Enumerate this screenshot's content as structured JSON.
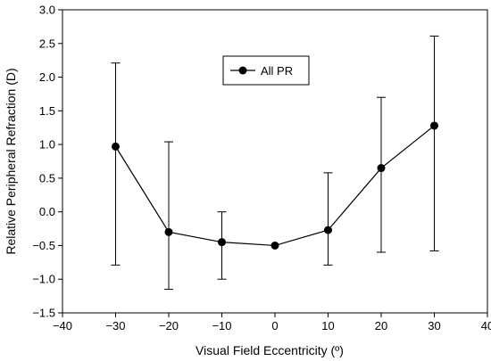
{
  "chart_data": {
    "type": "line",
    "xlabel": "Visual Field Eccentricity (º)",
    "ylabel": "Relative Peripheral Refraction (D)",
    "xlim": [
      -40,
      40
    ],
    "ylim": [
      -1.5,
      3.0
    ],
    "x_ticks": [
      -40,
      -30,
      -20,
      -10,
      0,
      10,
      20,
      30,
      40
    ],
    "x_tick_labels": [
      "−40",
      "−30",
      "−20",
      "−10",
      "0",
      "10",
      "20",
      "30",
      "40"
    ],
    "y_ticks": [
      3.0,
      2.5,
      2.0,
      1.5,
      1.0,
      0.5,
      0.0,
      -0.5,
      -1.0,
      -1.5
    ],
    "y_tick_labels": [
      "3.0",
      "2.5",
      "2.0",
      "1.5",
      "1.0",
      "0.5",
      "0.0",
      "−0.5",
      "−1.0",
      "−1.5"
    ],
    "grid": false,
    "legend_position": "top-center",
    "series": [
      {
        "name": "All PR",
        "color": "#000000",
        "marker": "circle",
        "x": [
          -30,
          -20,
          -10,
          0,
          10,
          20,
          30
        ],
        "y": [
          0.97,
          -0.3,
          -0.45,
          -0.5,
          -0.27,
          0.65,
          1.28
        ],
        "error_upper": [
          2.21,
          1.04,
          0.0,
          null,
          0.58,
          1.7,
          2.61
        ],
        "error_lower": [
          -0.79,
          -1.15,
          -1.0,
          null,
          -0.79,
          -0.6,
          -0.58
        ]
      }
    ]
  }
}
